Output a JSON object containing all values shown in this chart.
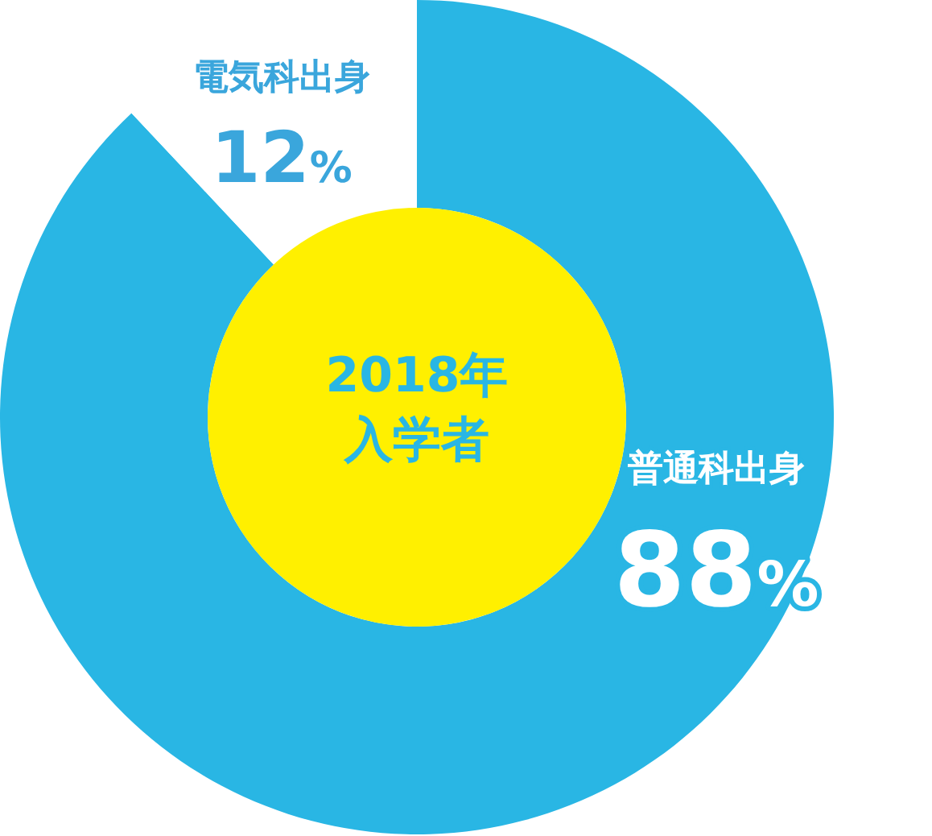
{
  "chart_data": {
    "type": "donut",
    "title": "2018年入学者",
    "categories": [
      "普通科出身",
      "電気科出身"
    ],
    "values": [
      88,
      12
    ],
    "colors": [
      "#29b6e4",
      "#ffffff"
    ],
    "value_labels": [
      "88%",
      "12%"
    ]
  }
}
